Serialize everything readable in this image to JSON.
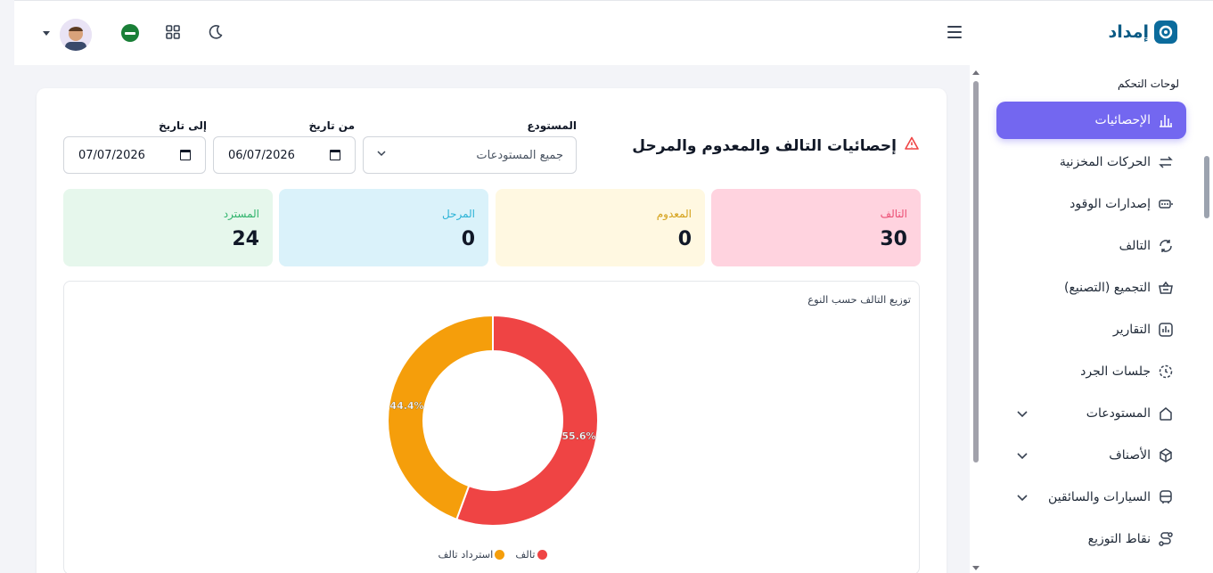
{
  "app": {
    "logo_text": "إمداد"
  },
  "colors": {
    "accent": "#7367f0",
    "brand": "#0b6b9c"
  },
  "header": {
    "icons": [
      "menu-icon",
      "moon-icon",
      "grid-icon",
      "flag-icon",
      "avatar",
      "caret-down-icon"
    ]
  },
  "sidebar": {
    "section_title": "لوحات التحكم",
    "items": [
      {
        "label": "الإحصائيات",
        "icon": "bar-chart-icon",
        "active": true
      },
      {
        "label": "الحركات المخزنية",
        "icon": "transfer-icon"
      },
      {
        "label": "إصدارات الوقود",
        "icon": "battery-icon"
      },
      {
        "label": "التالف",
        "icon": "refresh-icon"
      },
      {
        "label": "التجميع (التصنيع)",
        "icon": "basket-icon"
      },
      {
        "label": "التقارير",
        "icon": "report-icon"
      },
      {
        "label": "جلسات الجرد",
        "icon": "clock-icon"
      },
      {
        "label": "المستودعات",
        "icon": "home-icon",
        "expandable": true
      },
      {
        "label": "الأصناف",
        "icon": "box-icon",
        "expandable": true
      },
      {
        "label": "السيارات والسائقين",
        "icon": "bus-icon",
        "expandable": true
      },
      {
        "label": "نقاط التوزيع",
        "icon": "route-icon"
      }
    ]
  },
  "page": {
    "title": "إحصائيات التالف والمعدوم والمرحل",
    "warehouse_label": "المستودع",
    "warehouse_value": "جميع المستودعات",
    "from_label": "من تاريخ",
    "from_value": "06/07/2026",
    "to_label": "إلى تاريخ",
    "to_value": "07/07/2026"
  },
  "stats": [
    {
      "label": "التالف",
      "value": "30",
      "bg": "#ffd3df",
      "color": "#ec4f75"
    },
    {
      "label": "المعدوم",
      "value": "0",
      "bg": "#fff8e1",
      "color": "#d4a017"
    },
    {
      "label": "المرحل",
      "value": "0",
      "bg": "#daf2fa",
      "color": "#2bb3d6"
    },
    {
      "label": "المسترد",
      "value": "24",
      "bg": "#e6f7ec",
      "color": "#2fb36b"
    }
  ],
  "chart_data": {
    "type": "pie",
    "title": "توزيع التالف حسب النوع",
    "series": [
      {
        "name": "تالف",
        "value": 55.6,
        "label": "55.6%",
        "color": "#ef4444"
      },
      {
        "name": "استرداد تالف",
        "value": 44.4,
        "label": "44.4%",
        "color": "#f59e0b"
      }
    ],
    "legend": "bottom"
  }
}
